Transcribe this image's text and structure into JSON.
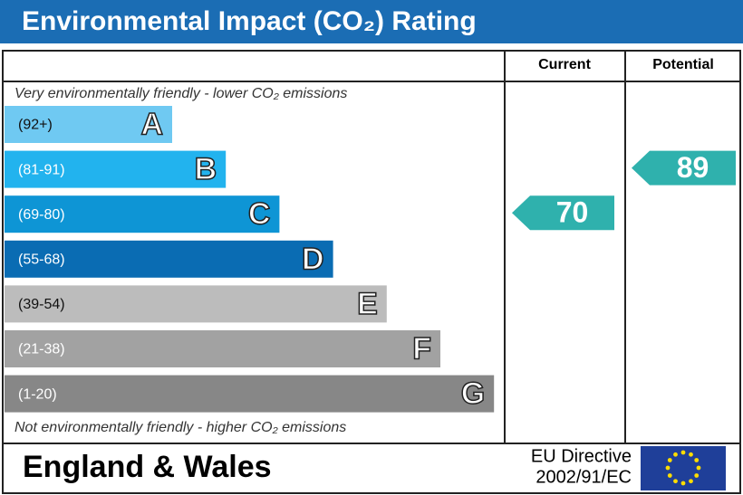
{
  "header": {
    "title": "Environmental Impact (CO₂) Rating"
  },
  "columns": {
    "current": "Current",
    "potential": "Potential"
  },
  "top_note": "Very environmentally friendly - lower CO₂ emissions",
  "bottom_note": "Not environmentally friendly - higher CO₂ emissions",
  "bands": [
    {
      "range": "(92+)",
      "letter": "A",
      "color": "#6fc9f2"
    },
    {
      "range": "(81-91)",
      "letter": "B",
      "color": "#22b3ee"
    },
    {
      "range": "(69-80)",
      "letter": "C",
      "color": "#0e95d5"
    },
    {
      "range": "(55-68)",
      "letter": "D",
      "color": "#0a6cb3"
    },
    {
      "range": "(39-54)",
      "letter": "E",
      "color": "#bcbcbc"
    },
    {
      "range": "(21-38)",
      "letter": "F",
      "color": "#a2a2a2"
    },
    {
      "range": "(1-20)",
      "letter": "G",
      "color": "#878787"
    }
  ],
  "current": {
    "value": 70,
    "color": "#2fb1ad"
  },
  "potential": {
    "value": 89,
    "color": "#2fb1ad"
  },
  "footer": {
    "region": "England & Wales",
    "directive_line1": "EU Directive",
    "directive_line2": "2002/91/EC"
  }
}
